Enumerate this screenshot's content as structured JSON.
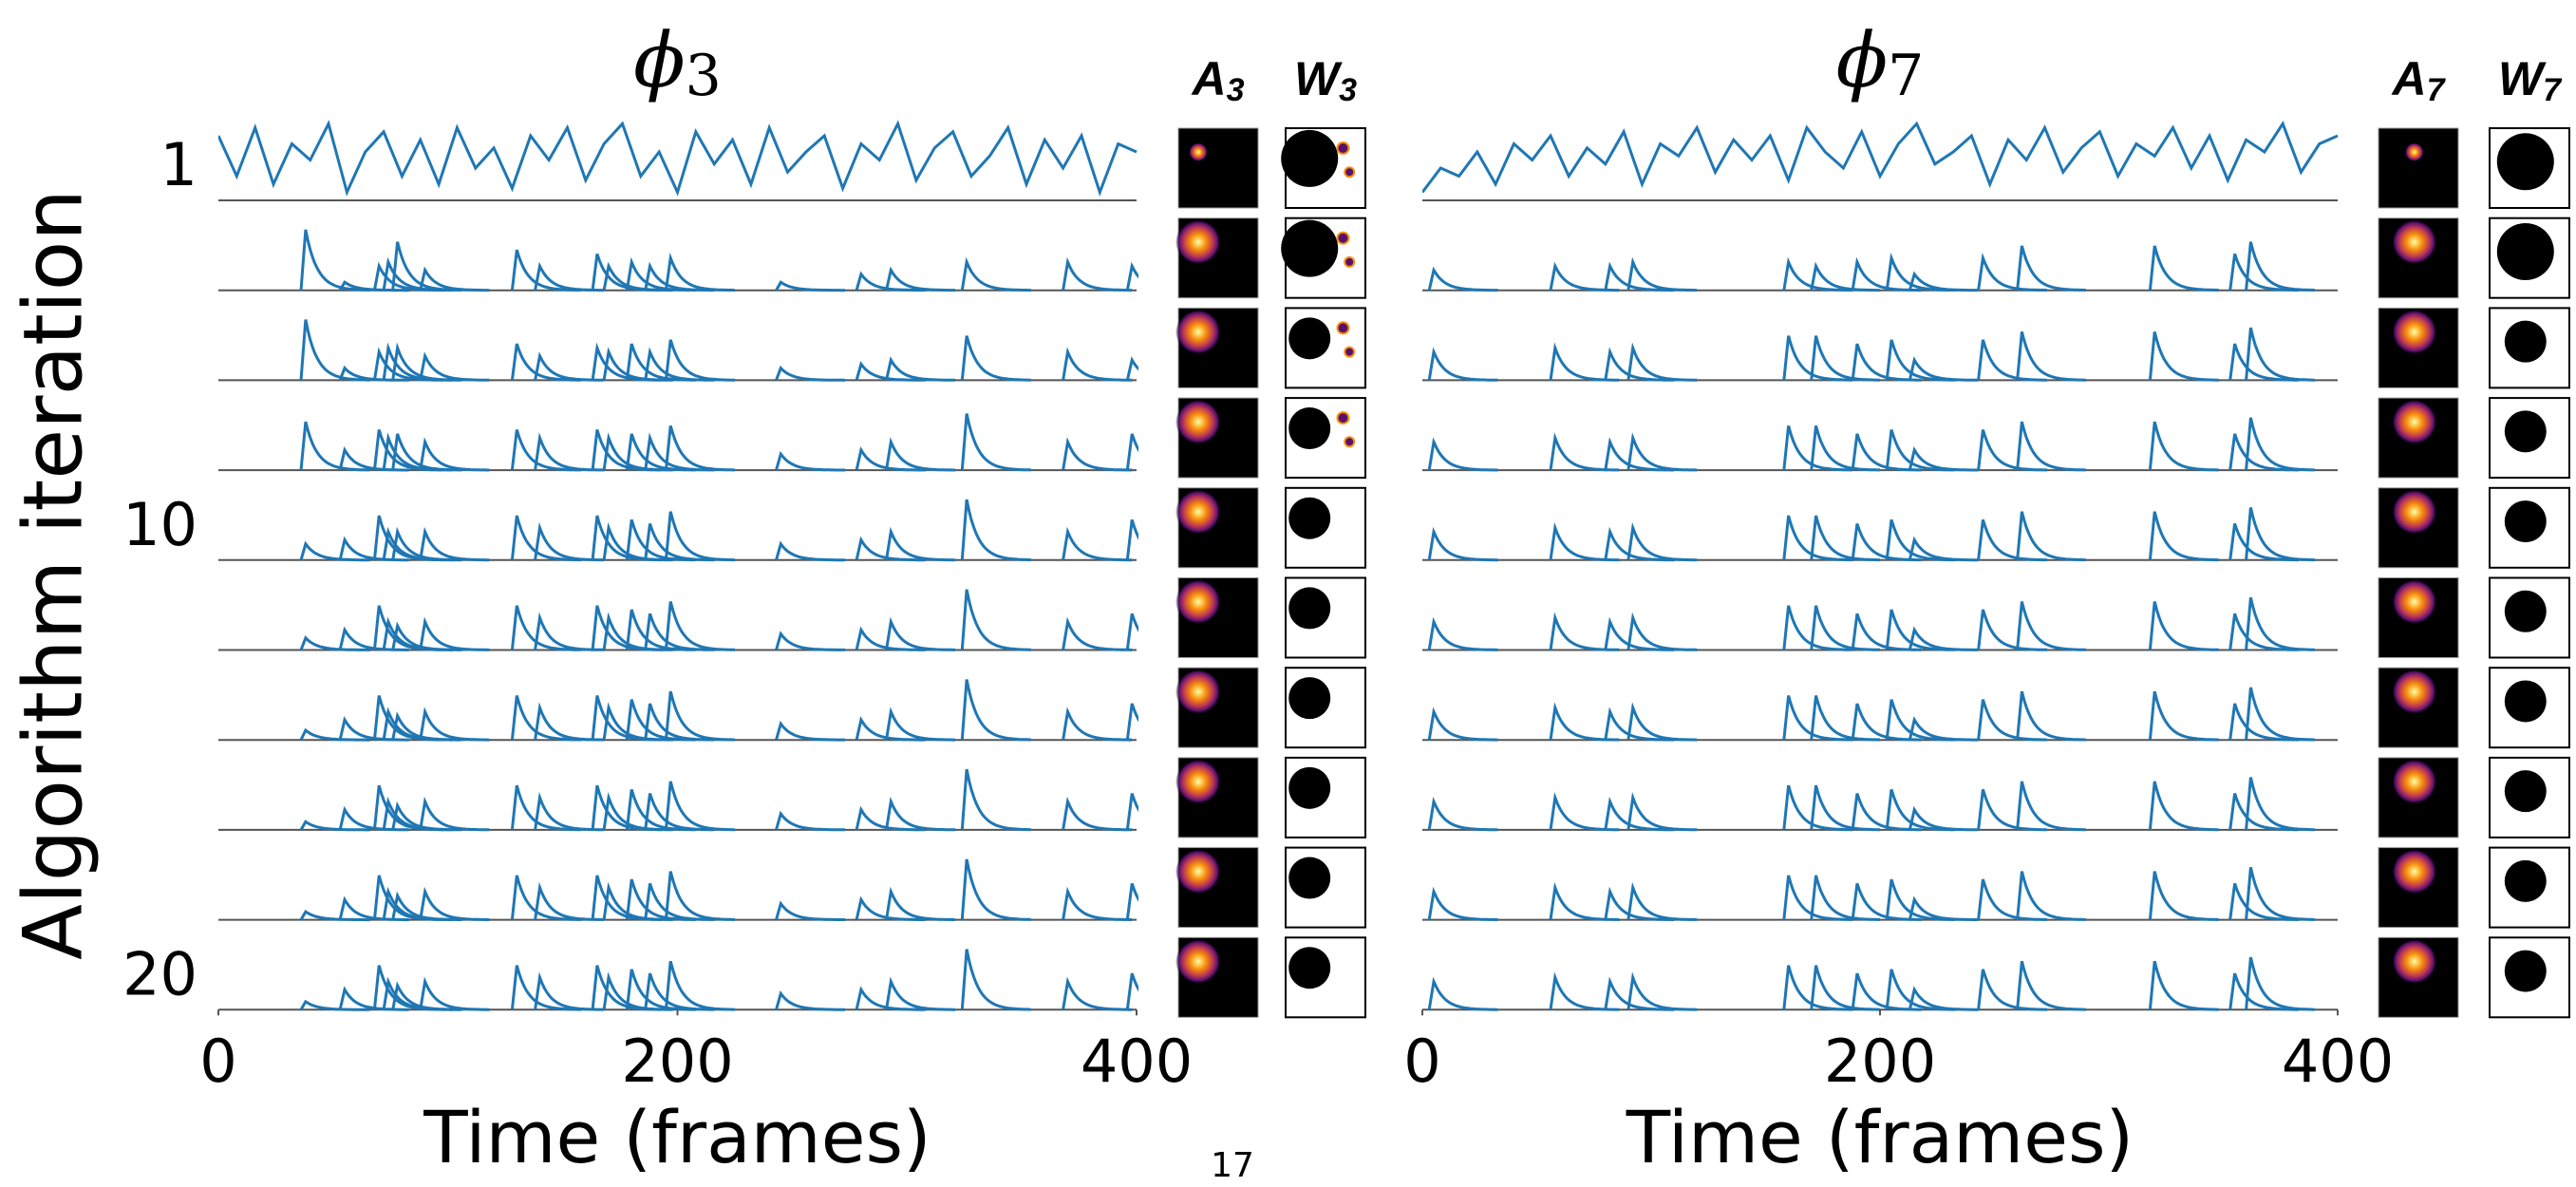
{
  "ylabel": "Algorithm iteration",
  "row_labels": [
    "1",
    null,
    null,
    null,
    "10",
    null,
    null,
    null,
    null,
    "20"
  ],
  "page_number": "17",
  "chart_data": [
    {
      "type": "line",
      "title": "ϕ",
      "title_subscript": "3",
      "xlabel": "Time (frames)",
      "xlim": [
        0,
        400
      ],
      "xticks": [
        0,
        200,
        400
      ],
      "ylim": [
        0,
        1
      ],
      "color": "#1f77b4",
      "image_titles": [
        {
          "letter": "A",
          "subscript": "3"
        },
        {
          "letter": "W",
          "subscript": "3"
        }
      ],
      "series": [
        {
          "mode": "line",
          "x": [
            0,
            8,
            16,
            24,
            32,
            40,
            48,
            56,
            64,
            72,
            80,
            88,
            96,
            104,
            112,
            120,
            128,
            136,
            144,
            152,
            160,
            168,
            176,
            184,
            192,
            200,
            208,
            216,
            224,
            232,
            240,
            248,
            256,
            264,
            272,
            280,
            288,
            296,
            304,
            312,
            320,
            328,
            336,
            344,
            352,
            360,
            368,
            376,
            384,
            392,
            400
          ],
          "values": [
            0.8,
            0.3,
            0.9,
            0.2,
            0.7,
            0.5,
            0.95,
            0.1,
            0.6,
            0.85,
            0.3,
            0.75,
            0.2,
            0.9,
            0.4,
            0.65,
            0.15,
            0.8,
            0.5,
            0.9,
            0.25,
            0.7,
            0.95,
            0.3,
            0.6,
            0.1,
            0.85,
            0.45,
            0.75,
            0.2,
            0.9,
            0.35,
            0.6,
            0.8,
            0.15,
            0.7,
            0.5,
            0.95,
            0.25,
            0.65,
            0.85,
            0.3,
            0.55,
            0.9,
            0.2,
            0.75,
            0.4,
            0.8,
            0.1,
            0.7,
            0.6
          ]
        },
        {
          "mode": "spikes",
          "x": [
            38,
            55,
            70,
            74,
            78,
            90,
            130,
            140,
            165,
            170,
            180,
            188,
            197,
            245,
            280,
            293,
            326,
            370,
            398
          ],
          "values": [
            0.75,
            0.1,
            0.3,
            0.35,
            0.6,
            0.25,
            0.5,
            0.3,
            0.45,
            0.3,
            0.35,
            0.3,
            0.4,
            0.1,
            0.2,
            0.25,
            0.35,
            0.35,
            0.3
          ]
        },
        {
          "mode": "spikes",
          "x": [
            38,
            55,
            70,
            74,
            78,
            90,
            130,
            140,
            165,
            170,
            180,
            188,
            197,
            245,
            280,
            293,
            326,
            370,
            398
          ],
          "values": [
            0.75,
            0.15,
            0.35,
            0.4,
            0.4,
            0.3,
            0.45,
            0.3,
            0.4,
            0.35,
            0.45,
            0.35,
            0.5,
            0.15,
            0.2,
            0.25,
            0.55,
            0.35,
            0.25
          ]
        },
        {
          "mode": "spikes",
          "x": [
            38,
            55,
            70,
            74,
            78,
            90,
            130,
            140,
            165,
            170,
            180,
            188,
            197,
            245,
            280,
            293,
            326,
            370,
            398
          ],
          "values": [
            0.6,
            0.25,
            0.5,
            0.4,
            0.45,
            0.35,
            0.5,
            0.4,
            0.5,
            0.4,
            0.45,
            0.4,
            0.55,
            0.2,
            0.25,
            0.35,
            0.7,
            0.35,
            0.45
          ]
        },
        {
          "mode": "spikes",
          "x": [
            38,
            55,
            70,
            74,
            78,
            90,
            130,
            140,
            165,
            170,
            180,
            188,
            197,
            245,
            280,
            293,
            326,
            370,
            398
          ],
          "values": [
            0.2,
            0.25,
            0.55,
            0.35,
            0.35,
            0.35,
            0.55,
            0.4,
            0.55,
            0.4,
            0.5,
            0.45,
            0.6,
            0.2,
            0.25,
            0.35,
            0.75,
            0.35,
            0.5
          ]
        },
        {
          "mode": "spikes",
          "x": [
            38,
            55,
            70,
            74,
            78,
            90,
            130,
            140,
            165,
            170,
            180,
            188,
            197,
            245,
            280,
            293,
            326,
            370,
            398
          ],
          "values": [
            0.15,
            0.25,
            0.55,
            0.35,
            0.3,
            0.35,
            0.55,
            0.4,
            0.55,
            0.4,
            0.5,
            0.45,
            0.6,
            0.2,
            0.25,
            0.35,
            0.75,
            0.35,
            0.45
          ]
        },
        {
          "mode": "spikes",
          "x": [
            38,
            55,
            70,
            74,
            78,
            90,
            130,
            140,
            165,
            170,
            180,
            188,
            197,
            245,
            280,
            293,
            326,
            370,
            398
          ],
          "values": [
            0.12,
            0.25,
            0.55,
            0.35,
            0.3,
            0.35,
            0.55,
            0.4,
            0.55,
            0.4,
            0.5,
            0.45,
            0.6,
            0.2,
            0.25,
            0.35,
            0.75,
            0.35,
            0.45
          ]
        },
        {
          "mode": "spikes",
          "x": [
            38,
            55,
            70,
            74,
            78,
            90,
            130,
            140,
            165,
            170,
            180,
            188,
            197,
            245,
            280,
            293,
            326,
            370,
            398
          ],
          "values": [
            0.1,
            0.25,
            0.55,
            0.35,
            0.3,
            0.35,
            0.55,
            0.4,
            0.55,
            0.4,
            0.5,
            0.45,
            0.6,
            0.2,
            0.25,
            0.35,
            0.75,
            0.35,
            0.45
          ]
        },
        {
          "mode": "spikes",
          "x": [
            38,
            55,
            70,
            74,
            78,
            90,
            130,
            140,
            165,
            170,
            180,
            188,
            197,
            245,
            280,
            293,
            326,
            370,
            398
          ],
          "values": [
            0.1,
            0.25,
            0.55,
            0.35,
            0.3,
            0.35,
            0.55,
            0.4,
            0.55,
            0.4,
            0.5,
            0.45,
            0.6,
            0.2,
            0.25,
            0.35,
            0.75,
            0.35,
            0.45
          ]
        },
        {
          "mode": "spikes",
          "x": [
            38,
            55,
            70,
            74,
            78,
            90,
            130,
            140,
            165,
            170,
            180,
            188,
            197,
            245,
            280,
            293,
            326,
            370,
            398
          ],
          "values": [
            0.1,
            0.25,
            0.55,
            0.35,
            0.3,
            0.35,
            0.55,
            0.4,
            0.55,
            0.4,
            0.5,
            0.45,
            0.6,
            0.2,
            0.25,
            0.35,
            0.75,
            0.35,
            0.45
          ]
        }
      ]
    },
    {
      "type": "line",
      "title": "ϕ",
      "title_subscript": "7",
      "xlabel": "Time (frames)",
      "xlim": [
        0,
        400
      ],
      "xticks": [
        0,
        200,
        400
      ],
      "ylim": [
        0,
        1
      ],
      "color": "#1f77b4",
      "image_titles": [
        {
          "letter": "A",
          "subscript": "7"
        },
        {
          "letter": "W",
          "subscript": "7"
        }
      ],
      "series": [
        {
          "mode": "line",
          "x": [
            0,
            8,
            16,
            24,
            32,
            40,
            48,
            56,
            64,
            72,
            80,
            88,
            96,
            104,
            112,
            120,
            128,
            136,
            144,
            152,
            160,
            168,
            176,
            184,
            192,
            200,
            208,
            216,
            224,
            232,
            240,
            248,
            256,
            264,
            272,
            280,
            288,
            296,
            304,
            312,
            320,
            328,
            336,
            344,
            352,
            360,
            368,
            376,
            384,
            392,
            400
          ],
          "values": [
            0.1,
            0.4,
            0.3,
            0.6,
            0.2,
            0.7,
            0.5,
            0.8,
            0.3,
            0.65,
            0.45,
            0.85,
            0.2,
            0.7,
            0.55,
            0.9,
            0.35,
            0.75,
            0.5,
            0.8,
            0.25,
            0.9,
            0.6,
            0.4,
            0.85,
            0.3,
            0.7,
            0.95,
            0.45,
            0.6,
            0.8,
            0.2,
            0.75,
            0.5,
            0.9,
            0.35,
            0.65,
            0.85,
            0.3,
            0.7,
            0.55,
            0.9,
            0.4,
            0.8,
            0.25,
            0.75,
            0.6,
            0.95,
            0.35,
            0.7,
            0.8
          ]
        },
        {
          "mode": "spikes",
          "x": [
            5,
            58,
            82,
            92,
            160,
            172,
            190,
            205,
            215,
            245,
            262,
            320,
            355,
            362
          ],
          "values": [
            0.25,
            0.3,
            0.3,
            0.35,
            0.35,
            0.3,
            0.35,
            0.4,
            0.2,
            0.4,
            0.55,
            0.55,
            0.45,
            0.6
          ]
        },
        {
          "mode": "spikes",
          "x": [
            5,
            58,
            82,
            92,
            160,
            172,
            190,
            205,
            215,
            245,
            262,
            320,
            355,
            362
          ],
          "values": [
            0.35,
            0.4,
            0.35,
            0.4,
            0.55,
            0.55,
            0.45,
            0.5,
            0.25,
            0.5,
            0.6,
            0.6,
            0.45,
            0.65
          ]
        },
        {
          "mode": "spikes",
          "x": [
            5,
            58,
            82,
            92,
            160,
            172,
            190,
            205,
            215,
            245,
            262,
            320,
            355,
            362
          ],
          "values": [
            0.35,
            0.4,
            0.35,
            0.4,
            0.55,
            0.55,
            0.45,
            0.5,
            0.25,
            0.5,
            0.6,
            0.6,
            0.45,
            0.65
          ]
        },
        {
          "mode": "spikes",
          "x": [
            5,
            58,
            82,
            92,
            160,
            172,
            190,
            205,
            215,
            245,
            262,
            320,
            355,
            362
          ],
          "values": [
            0.35,
            0.4,
            0.35,
            0.4,
            0.55,
            0.55,
            0.45,
            0.5,
            0.25,
            0.5,
            0.6,
            0.6,
            0.45,
            0.65
          ]
        },
        {
          "mode": "spikes",
          "x": [
            5,
            58,
            82,
            92,
            160,
            172,
            190,
            205,
            215,
            245,
            262,
            320,
            355,
            362
          ],
          "values": [
            0.35,
            0.4,
            0.35,
            0.4,
            0.55,
            0.55,
            0.45,
            0.5,
            0.25,
            0.5,
            0.6,
            0.6,
            0.45,
            0.65
          ]
        },
        {
          "mode": "spikes",
          "x": [
            5,
            58,
            82,
            92,
            160,
            172,
            190,
            205,
            215,
            245,
            262,
            320,
            355,
            362
          ],
          "values": [
            0.35,
            0.4,
            0.35,
            0.4,
            0.55,
            0.55,
            0.45,
            0.5,
            0.25,
            0.5,
            0.6,
            0.6,
            0.45,
            0.65
          ]
        },
        {
          "mode": "spikes",
          "x": [
            5,
            58,
            82,
            92,
            160,
            172,
            190,
            205,
            215,
            245,
            262,
            320,
            355,
            362
          ],
          "values": [
            0.35,
            0.4,
            0.35,
            0.4,
            0.55,
            0.55,
            0.45,
            0.5,
            0.25,
            0.5,
            0.6,
            0.6,
            0.45,
            0.65
          ]
        },
        {
          "mode": "spikes",
          "x": [
            5,
            58,
            82,
            92,
            160,
            172,
            190,
            205,
            215,
            245,
            262,
            320,
            355,
            362
          ],
          "values": [
            0.35,
            0.4,
            0.35,
            0.4,
            0.55,
            0.55,
            0.45,
            0.5,
            0.25,
            0.5,
            0.6,
            0.6,
            0.45,
            0.65
          ]
        },
        {
          "mode": "spikes",
          "x": [
            5,
            58,
            82,
            92,
            160,
            172,
            190,
            205,
            215,
            245,
            262,
            320,
            355,
            362
          ],
          "values": [
            0.35,
            0.4,
            0.35,
            0.4,
            0.55,
            0.55,
            0.45,
            0.5,
            0.25,
            0.5,
            0.6,
            0.6,
            0.45,
            0.65
          ]
        }
      ]
    }
  ]
}
